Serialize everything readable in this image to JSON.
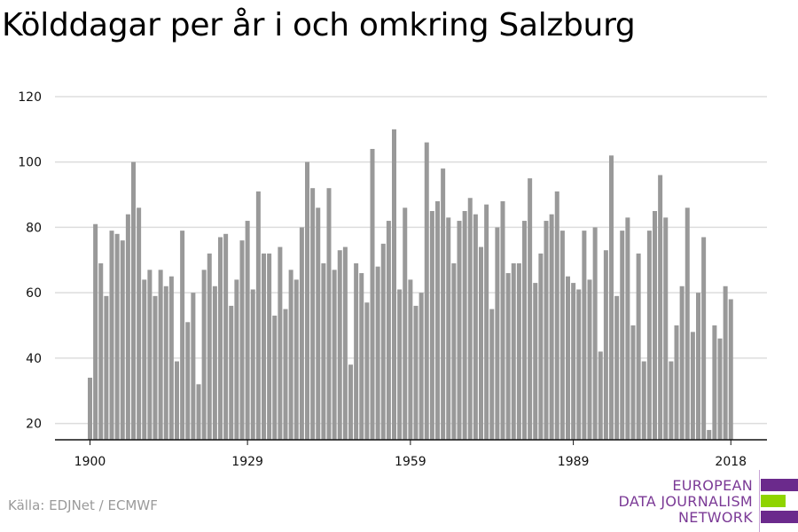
{
  "title": "Kölddagar per år i och omkring Salzburg",
  "source": "Källa: EDJNet / ECMWF",
  "logo": {
    "line1": "EUROPEAN",
    "line2": "DATA JOURNALISM",
    "line3": "NETWORK",
    "colors": {
      "text": "#7b3a96",
      "purple": "#6b2a8c",
      "green": "#8fd400"
    }
  },
  "chart_data": {
    "type": "bar",
    "title": "",
    "xlabel": "",
    "ylabel": "",
    "x_start": 1900,
    "x_ticks": [
      1900,
      1929,
      1959,
      1989,
      2018
    ],
    "ylim": [
      15,
      120
    ],
    "y_ticks": [
      20,
      40,
      60,
      80,
      100,
      120
    ],
    "grid": true,
    "bar_color": "#999999",
    "values": [
      34,
      81,
      69,
      59,
      79,
      78,
      76,
      84,
      100,
      86,
      64,
      67,
      59,
      67,
      62,
      65,
      39,
      79,
      51,
      60,
      32,
      67,
      72,
      62,
      77,
      78,
      56,
      64,
      76,
      82,
      61,
      91,
      72,
      72,
      53,
      74,
      55,
      67,
      64,
      80,
      100,
      92,
      86,
      69,
      92,
      67,
      73,
      74,
      38,
      69,
      66,
      57,
      104,
      68,
      75,
      82,
      110,
      61,
      86,
      64,
      56,
      60,
      106,
      85,
      88,
      98,
      83,
      69,
      82,
      85,
      89,
      84,
      74,
      87,
      55,
      80,
      88,
      66,
      69,
      69,
      82,
      95,
      63,
      72,
      82,
      84,
      91,
      79,
      65,
      63,
      61,
      79,
      64,
      80,
      42,
      73,
      102,
      59,
      79,
      83,
      50,
      72,
      39,
      79,
      85,
      96,
      83,
      39,
      50,
      62,
      86,
      48,
      60,
      77,
      18,
      50,
      46,
      62,
      58
    ]
  }
}
